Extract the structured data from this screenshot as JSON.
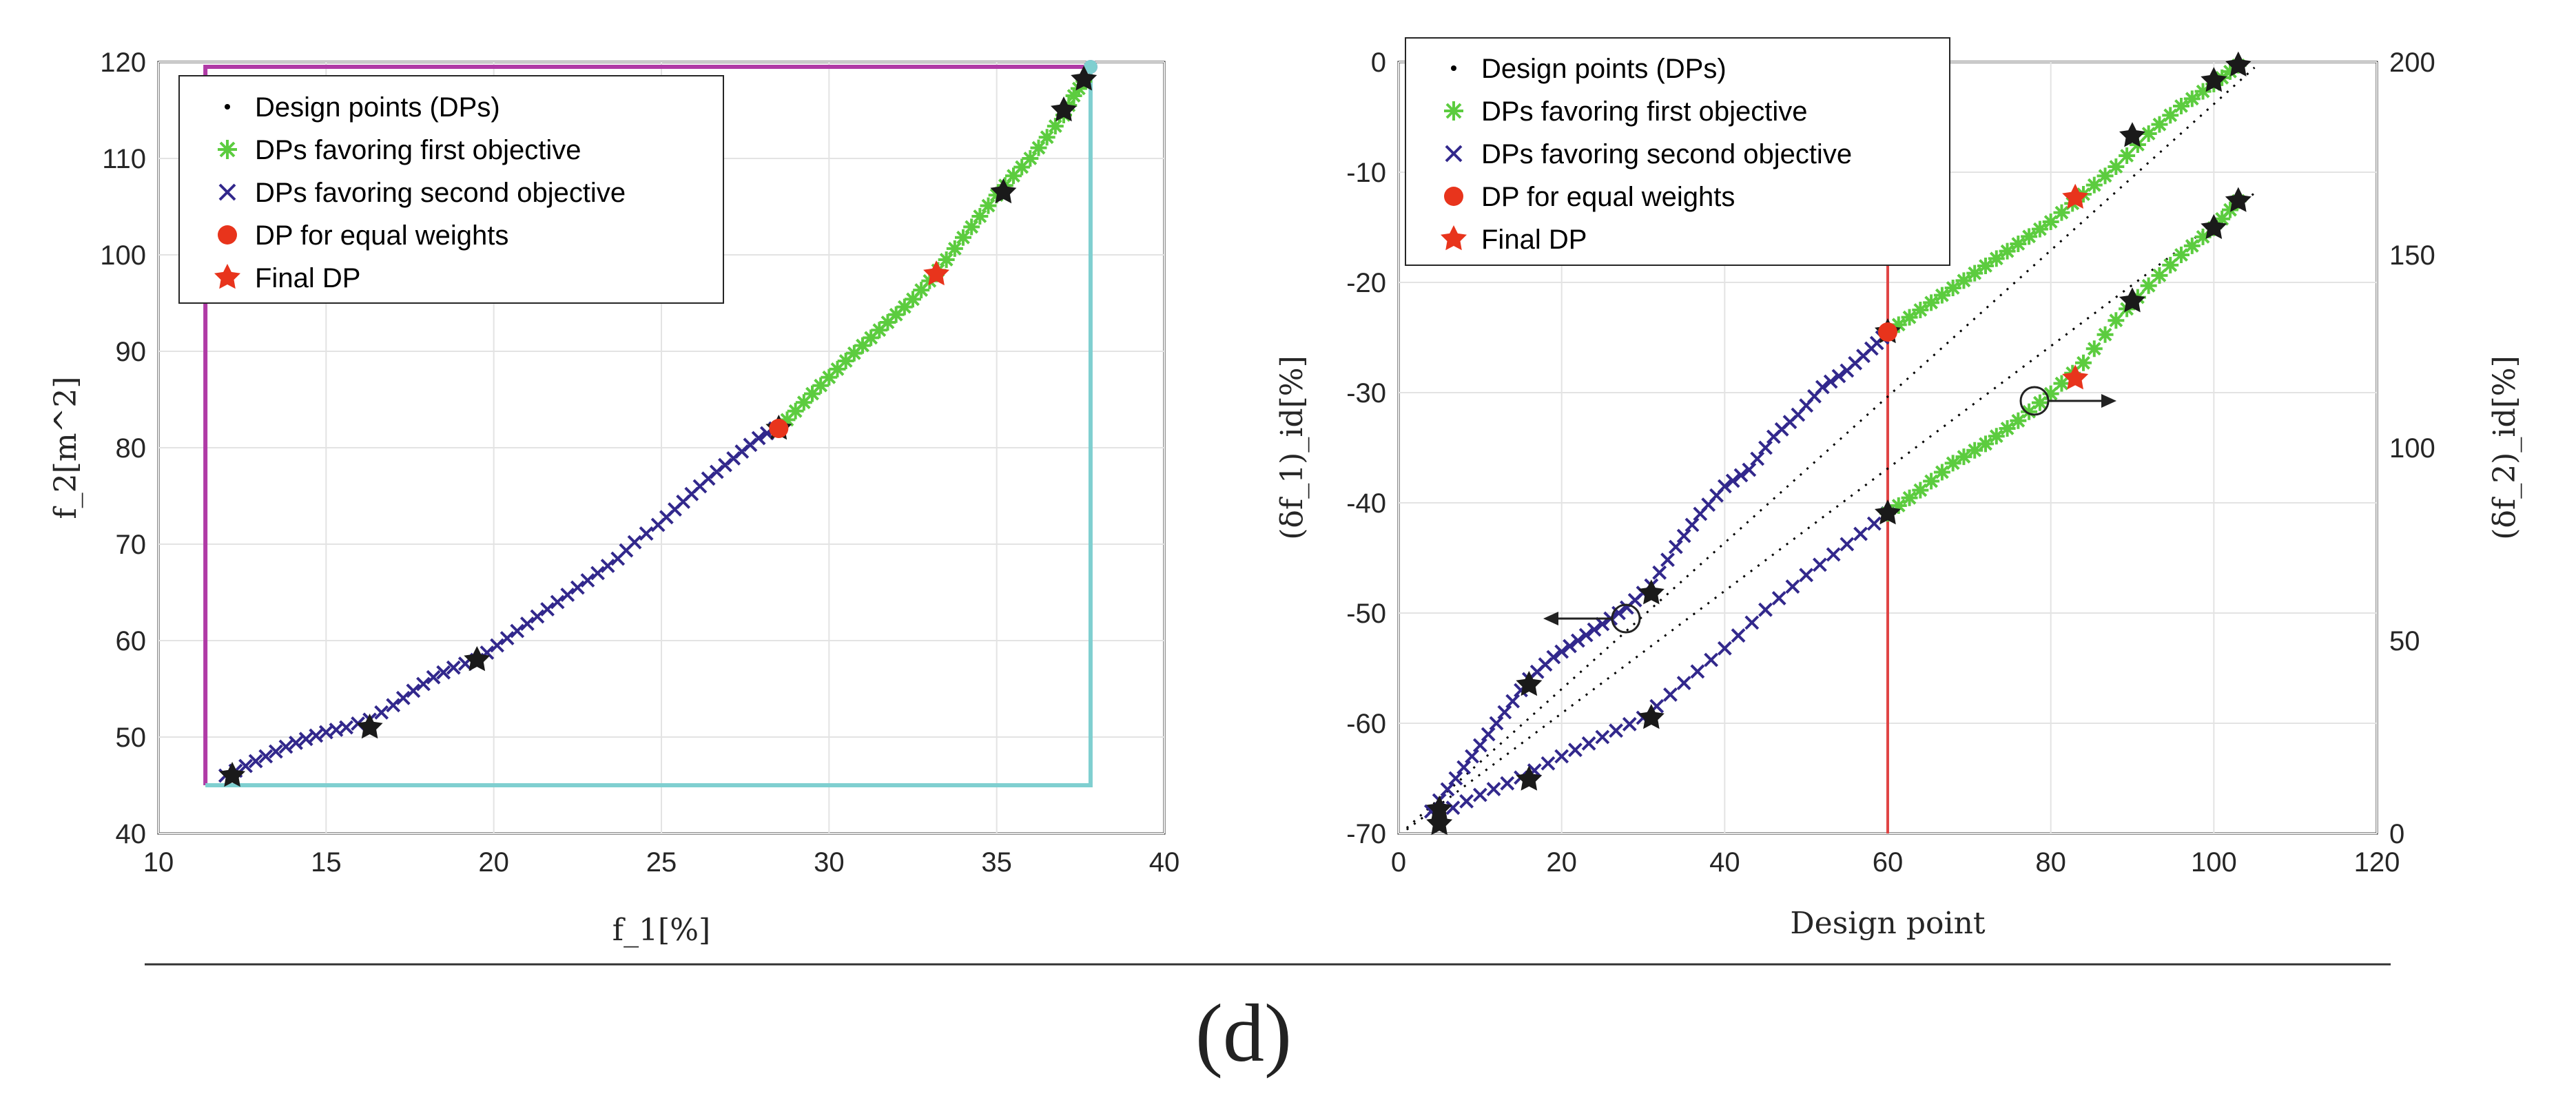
{
  "caption": "(d)",
  "colors": {
    "design_points": "#000000",
    "first_objective": "#5ccc3f",
    "second_objective": "#32288c",
    "equal_weights": "#e8341c",
    "final_dp": "#e8341c",
    "milestone_star": "#1a1a1a",
    "magenta_line": "#b03aa6",
    "cyan_line": "#7fcfd0",
    "red_vline": "#e04545"
  },
  "legend": {
    "design_points": "Design points (DPs)",
    "first_objective": "DPs favoring first objective",
    "second_objective": "DPs favoring second objective",
    "equal_weights": "DP for equal weights",
    "final_dp": "Final DP"
  },
  "chart_data": [
    {
      "type": "scatter",
      "xlabel": "f_1[%]",
      "ylabel": "f_2[m^2]",
      "xlim": [
        10,
        40
      ],
      "ylim": [
        40,
        120
      ],
      "xticks": [
        10,
        15,
        20,
        25,
        30,
        35,
        40
      ],
      "yticks": [
        40,
        50,
        60,
        70,
        80,
        90,
        100,
        110,
        120
      ],
      "grid": true,
      "legend_position": "top-left",
      "series": [
        {
          "name": "DPs favoring second objective",
          "marker": "x",
          "x": [
            12.0,
            12.6,
            13.2,
            13.8,
            14.4,
            15.0,
            15.6,
            16.3,
            17.0,
            17.6,
            18.2,
            18.8,
            19.5,
            20.1,
            20.7,
            21.3,
            21.9,
            22.5,
            23.1,
            23.7,
            24.2,
            24.9,
            25.4,
            25.9,
            26.4,
            26.9,
            27.4,
            27.9,
            28.4
          ],
          "y": [
            46.0,
            47.0,
            48.0,
            49.0,
            49.8,
            50.5,
            51.0,
            51.8,
            53.3,
            54.8,
            56.2,
            57.2,
            58.0,
            59.5,
            61.0,
            62.5,
            64.0,
            65.5,
            67.0,
            68.5,
            70.2,
            72.0,
            73.6,
            75.2,
            76.8,
            78.2,
            79.6,
            81.0,
            82.0
          ]
        },
        {
          "name": "DPs favoring first objective",
          "marker": "*",
          "x": [
            28.5,
            29.0,
            29.5,
            30.0,
            30.5,
            31.0,
            31.5,
            32.0,
            32.5,
            33.0,
            33.5,
            34.0,
            34.5,
            35.0,
            35.5,
            36.0,
            36.5,
            37.0,
            37.3,
            37.6
          ],
          "y": [
            82.0,
            83.8,
            85.6,
            87.3,
            89.0,
            90.6,
            92.2,
            93.8,
            95.4,
            97.3,
            99.5,
            101.8,
            104.0,
            106.2,
            108.2,
            110.0,
            112.2,
            114.5,
            116.5,
            118.0
          ]
        },
        {
          "name": "Milestone DPs",
          "marker": "star-black",
          "x": [
            12.2,
            16.3,
            19.5,
            28.5,
            35.2,
            37.0,
            37.6
          ],
          "y": [
            46.0,
            51.0,
            58.0,
            82.0,
            106.5,
            115.0,
            118.2
          ]
        },
        {
          "name": "DP for equal weights",
          "marker": "o",
          "x": [
            28.5
          ],
          "y": [
            82.0
          ]
        },
        {
          "name": "Final DP",
          "marker": "star-red",
          "x": [
            33.2
          ],
          "y": [
            98.0
          ]
        },
        {
          "name": "Magenta boundary",
          "marker": "line",
          "x": [
            11.4,
            11.4,
            37.8
          ],
          "y": [
            45.0,
            119.5,
            119.5
          ]
        },
        {
          "name": "Cyan boundary",
          "marker": "line",
          "x": [
            11.4,
            37.8,
            37.8
          ],
          "y": [
            45.0,
            45.0,
            119.5
          ]
        }
      ]
    },
    {
      "type": "scatter",
      "xlabel": "Design point",
      "ylabel": "(δf_1)_id[%]",
      "ylabel_right": "(δf_2)_id[%]",
      "xlim": [
        0,
        120
      ],
      "ylim": [
        -70,
        0
      ],
      "ylim_right": [
        0,
        200
      ],
      "xticks": [
        0,
        20,
        40,
        60,
        80,
        100,
        120
      ],
      "yticks": [
        -70,
        -60,
        -50,
        -40,
        -30,
        -20,
        -10,
        0
      ],
      "yticks_right": [
        0,
        50,
        100,
        150,
        200
      ],
      "grid": true,
      "legend_position": "top-left",
      "vertical_line_x": 60,
      "series": [
        {
          "name": "δf1 second objective",
          "axis": "left",
          "marker": "x",
          "x": [
            4,
            7,
            10,
            13,
            16,
            19,
            22,
            25,
            28,
            31,
            34,
            37,
            40,
            43,
            46,
            49,
            52,
            55,
            58,
            60
          ],
          "y": [
            -68.0,
            -65.0,
            -62.0,
            -59.0,
            -56.0,
            -54.0,
            -52.5,
            -51.0,
            -49.5,
            -47.5,
            -44.0,
            -41.0,
            -38.5,
            -37.0,
            -34.0,
            -32.0,
            -29.5,
            -28.0,
            -26.0,
            -24.5
          ]
        },
        {
          "name": "δf1 first objective",
          "axis": "left",
          "marker": "*",
          "x": [
            60,
            64,
            68,
            72,
            76,
            80,
            84,
            88,
            92,
            96,
            100,
            103
          ],
          "y": [
            -24.5,
            -22.5,
            -20.5,
            -18.5,
            -16.5,
            -14.5,
            -12.0,
            -9.5,
            -6.5,
            -4.0,
            -2.0,
            -0.3
          ]
        },
        {
          "name": "δf2 second objective",
          "axis": "right",
          "marker": "x",
          "x": [
            5,
            10,
            15,
            20,
            25,
            30,
            35,
            40,
            45,
            50,
            55,
            60
          ],
          "y": [
            5.0,
            10.0,
            14.5,
            20.0,
            25.0,
            30.0,
            39.0,
            48.0,
            58.0,
            67.0,
            75.0,
            83.0
          ]
        },
        {
          "name": "δf2 first objective",
          "axis": "right",
          "marker": "*",
          "x": [
            60,
            64,
            68,
            72,
            76,
            80,
            84,
            88,
            92,
            96,
            100,
            103
          ],
          "y": [
            83.0,
            89.0,
            96.0,
            101.0,
            107.0,
            114.0,
            122.0,
            133.0,
            142.0,
            150.0,
            157.0,
            164.0
          ]
        },
        {
          "name": "Milestone DPs left",
          "axis": "left",
          "marker": "star-black",
          "x": [
            5,
            16,
            31,
            60,
            90,
            100,
            103
          ],
          "y": [
            -67.8,
            -56.5,
            -48.2,
            -24.5,
            -6.7,
            -1.7,
            -0.3
          ]
        },
        {
          "name": "Milestone DPs right",
          "axis": "right",
          "marker": "star-black",
          "x": [
            5,
            16,
            31,
            60,
            90,
            100,
            103
          ],
          "y": [
            2.5,
            14.0,
            30.0,
            83.0,
            138.0,
            157.0,
            164.0
          ]
        },
        {
          "name": "DP for equal weights",
          "axis": "left",
          "marker": "o",
          "x": [
            60
          ],
          "y": [
            -24.5
          ]
        },
        {
          "name": "Final DP",
          "axis": "left",
          "marker": "star-red",
          "x": [
            83
          ],
          "y": [
            -12.3
          ]
        },
        {
          "name": "Final DP right",
          "axis": "right",
          "marker": "star-red",
          "x": [
            83
          ],
          "y": [
            118.0
          ]
        }
      ]
    }
  ]
}
